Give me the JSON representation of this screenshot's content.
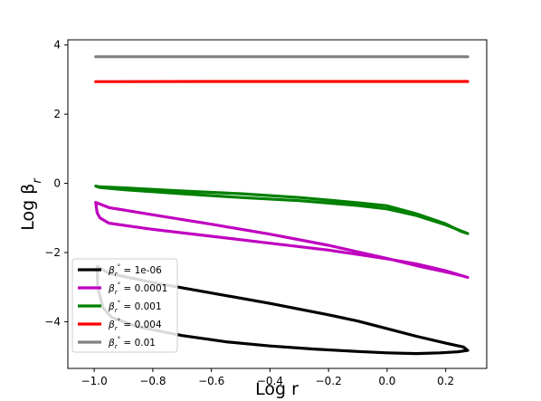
{
  "chart_data": {
    "type": "line",
    "title": "",
    "xlabel": "Log r",
    "ylabel": "Log β_r",
    "xlim": [
      -1.09,
      0.34
    ],
    "ylim": [
      -5.35,
      4.15
    ],
    "x_ticks": [
      {
        "value": -1.0,
        "label": "−1.0"
      },
      {
        "value": -0.8,
        "label": "−0.8"
      },
      {
        "value": -0.6,
        "label": "−0.6"
      },
      {
        "value": -0.4,
        "label": "−0.4"
      },
      {
        "value": -0.2,
        "label": "−0.2"
      },
      {
        "value": 0.0,
        "label": "0.0"
      },
      {
        "value": 0.2,
        "label": "0.2"
      }
    ],
    "y_ticks": [
      {
        "value": -4,
        "label": "−4"
      },
      {
        "value": -2,
        "label": "−2"
      },
      {
        "value": 0,
        "label": "0"
      },
      {
        "value": 2,
        "label": "2"
      },
      {
        "value": 4,
        "label": "4"
      }
    ],
    "grid": false,
    "legend_position": "lower-left",
    "series": [
      {
        "name": "1e-06",
        "color": "#000000",
        "points": [
          [
            -0.99,
            -2.4
          ],
          [
            -0.988,
            -3.0
          ],
          [
            -0.97,
            -3.6
          ],
          [
            -0.94,
            -3.88
          ],
          [
            -0.85,
            -4.15
          ],
          [
            -0.7,
            -4.4
          ],
          [
            -0.55,
            -4.58
          ],
          [
            -0.4,
            -4.7
          ],
          [
            -0.25,
            -4.79
          ],
          [
            -0.1,
            -4.86
          ],
          [
            0.0,
            -4.9
          ],
          [
            0.1,
            -4.92
          ],
          [
            0.18,
            -4.9
          ],
          [
            0.24,
            -4.87
          ],
          [
            0.275,
            -4.83
          ],
          [
            0.26,
            -4.73
          ],
          [
            0.2,
            -4.62
          ],
          [
            0.1,
            -4.42
          ],
          [
            0.0,
            -4.2
          ],
          [
            -0.1,
            -3.98
          ],
          [
            -0.2,
            -3.8
          ],
          [
            -0.4,
            -3.47
          ],
          [
            -0.6,
            -3.17
          ],
          [
            -0.8,
            -2.87
          ],
          [
            -0.95,
            -2.6
          ],
          [
            -0.99,
            -2.4
          ]
        ]
      },
      {
        "name": "0.0001",
        "color": "#bf00bf",
        "points": [
          [
            -0.995,
            -0.55
          ],
          [
            -0.99,
            -0.85
          ],
          [
            -0.98,
            -1.0
          ],
          [
            -0.95,
            -1.15
          ],
          [
            -0.8,
            -1.33
          ],
          [
            -0.6,
            -1.53
          ],
          [
            -0.4,
            -1.73
          ],
          [
            -0.2,
            -1.93
          ],
          [
            0.0,
            -2.18
          ],
          [
            0.1,
            -2.33
          ],
          [
            0.2,
            -2.53
          ],
          [
            0.275,
            -2.72
          ],
          [
            0.26,
            -2.68
          ],
          [
            0.2,
            -2.56
          ],
          [
            0.1,
            -2.38
          ],
          [
            0.0,
            -2.17
          ],
          [
            -0.2,
            -1.79
          ],
          [
            -0.4,
            -1.47
          ],
          [
            -0.6,
            -1.18
          ],
          [
            -0.8,
            -0.91
          ],
          [
            -0.95,
            -0.7
          ],
          [
            -0.995,
            -0.55
          ]
        ]
      },
      {
        "name": "0.001",
        "color": "#008000",
        "points": [
          [
            -0.995,
            -0.08
          ],
          [
            -0.98,
            -0.12
          ],
          [
            -0.9,
            -0.18
          ],
          [
            -0.7,
            -0.3
          ],
          [
            -0.5,
            -0.41
          ],
          [
            -0.3,
            -0.5
          ],
          [
            -0.1,
            -0.64
          ],
          [
            0.0,
            -0.74
          ],
          [
            0.1,
            -0.93
          ],
          [
            0.2,
            -1.2
          ],
          [
            0.275,
            -1.45
          ],
          [
            0.25,
            -1.38
          ],
          [
            0.2,
            -1.17
          ],
          [
            0.1,
            -0.88
          ],
          [
            0.0,
            -0.65
          ],
          [
            -0.1,
            -0.56
          ],
          [
            -0.3,
            -0.41
          ],
          [
            -0.5,
            -0.3
          ],
          [
            -0.7,
            -0.22
          ],
          [
            -0.9,
            -0.13
          ],
          [
            -0.98,
            -0.1
          ],
          [
            -0.995,
            -0.08
          ]
        ]
      },
      {
        "name": "0.004",
        "color": "#ff0000",
        "points": [
          [
            -0.995,
            2.94
          ],
          [
            -0.6,
            2.945
          ],
          [
            -0.2,
            2.945
          ],
          [
            0.275,
            2.945
          ]
        ]
      },
      {
        "name": "0.01",
        "color": "#808080",
        "points": [
          [
            -0.995,
            3.66
          ],
          [
            -0.5,
            3.66
          ],
          [
            0.0,
            3.66
          ],
          [
            0.275,
            3.66
          ]
        ]
      }
    ]
  }
}
